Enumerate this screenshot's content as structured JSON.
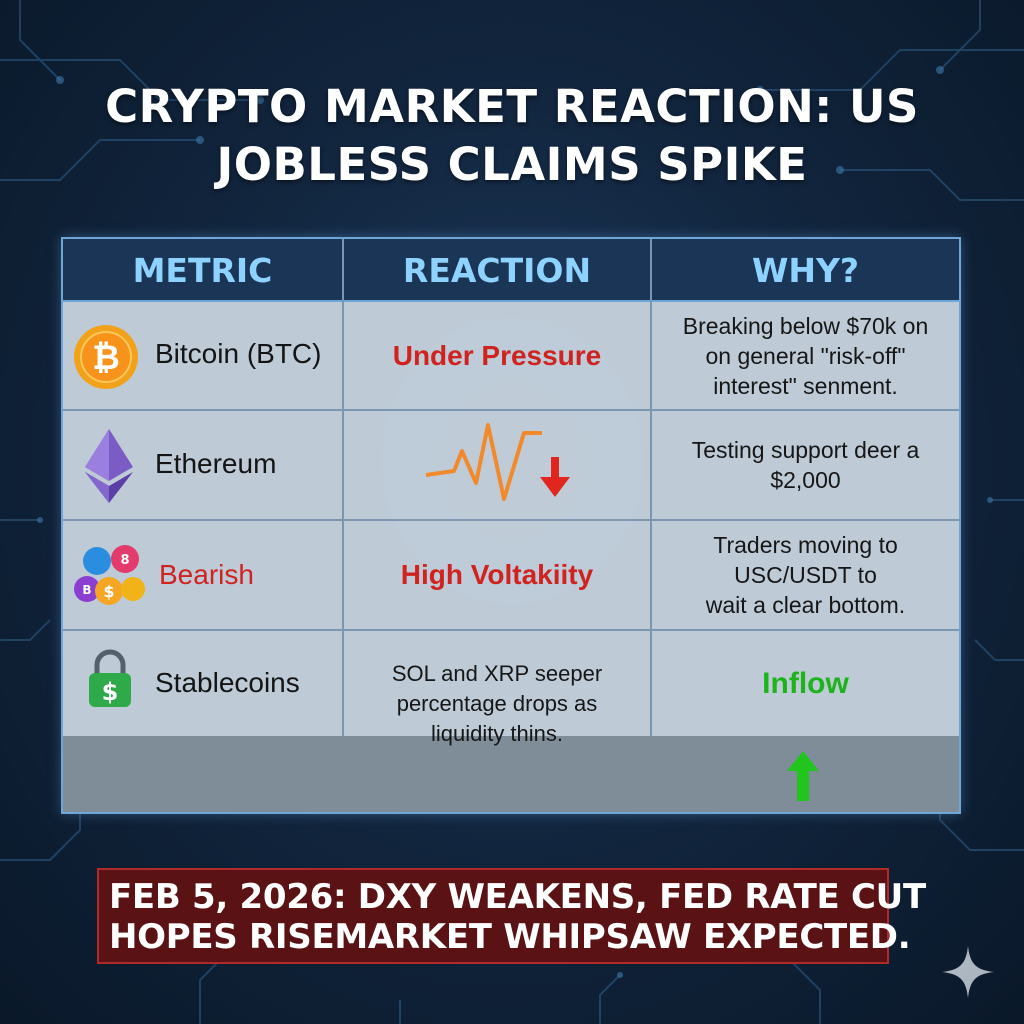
{
  "title": {
    "line1": "CRYPTO MARKET REACTION: US",
    "line2": "JOBLESS CLAIMS SPIKE"
  },
  "table": {
    "headers": [
      "METRIC",
      "REACTION",
      "WHY?"
    ],
    "rows": [
      {
        "metric": "Bitcoin (BTC)",
        "metric_icon": "bitcoin-coin-icon",
        "reaction": "Under Pressure",
        "why": [
          "Breaking below $70k on",
          "on general \"risk-off\"",
          "interest\" senment."
        ]
      },
      {
        "metric": "Ethereum",
        "metric_icon": "ethereum-diamond-icon",
        "reaction_icon": "volatile-line-down-arrow-icon",
        "why": [
          "Testing support deer a",
          "$2,000"
        ]
      },
      {
        "metric": "Bearish",
        "metric_icon": "altcoin-cluster-icon",
        "reaction": "High Voltakiity",
        "why": [
          "Traders moving to",
          "USC/USDT to",
          "wait a clear bottom."
        ]
      },
      {
        "metric": "Stablecoins",
        "metric_icon": "dollar-lock-icon",
        "reaction": [
          "SOL and XRP seeper",
          "percentage drops as",
          "liquidity thins."
        ],
        "why": "Inflow",
        "why_icon": "green-up-arrow-icon"
      }
    ]
  },
  "banner": {
    "line1": "FEB 5, 2026: DXY WEAKENS, FED RATE CUT",
    "line2": "HOPES RISEMARKET WHIPSAW EXPECTED."
  },
  "colors": {
    "header_text": "#8ed3ff",
    "red": "#d0231f",
    "green": "#1db31a",
    "banner_bg": "#5a1215"
  }
}
